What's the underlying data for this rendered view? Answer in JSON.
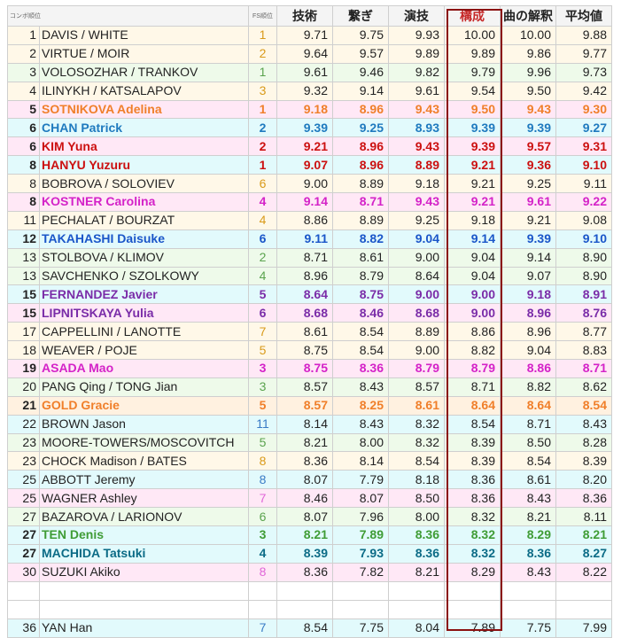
{
  "header": {
    "rank": "コンボ順位",
    "fs": "FS順位",
    "cols": [
      "技術",
      "繋ぎ",
      "演技",
      "構成",
      "曲の解釈",
      "平均値"
    ]
  },
  "colors": {
    "bg_yellow": "#fff8e8",
    "bg_green": "#eefaea",
    "bg_pink": "#ffe8f6",
    "bg_cyan": "#e2fafc",
    "bg_orange": "#fff1e0",
    "bg_violet": "#f4ecfb",
    "bg_white": "#ffffff",
    "t_orange": "#f07f2a",
    "t_blue": "#1f7abf",
    "t_red": "#cc1010",
    "t_magenta": "#d422c8",
    "t_navy": "#1a56c9",
    "t_purple": "#7a2ca8",
    "t_green": "#3f9c35",
    "t_teal": "#0b6b86",
    "t_pinkfs": "#e066d8",
    "t_goldfs": "#d99a1a",
    "t_greenfs": "#5aa34e",
    "t_bluefs": "#3a7cc6"
  },
  "rows": [
    {
      "rank": "1",
      "name": "DAVIS / WHITE",
      "fs": "1",
      "v": [
        "9.71",
        "9.75",
        "9.93",
        "10.00",
        "10.00",
        "9.88"
      ],
      "bg": "bg_yellow",
      "fsc": "t_goldfs"
    },
    {
      "rank": "2",
      "name": "VIRTUE / MOIR",
      "fs": "2",
      "v": [
        "9.64",
        "9.57",
        "9.89",
        "9.89",
        "9.86",
        "9.77"
      ],
      "bg": "bg_yellow",
      "fsc": "t_goldfs"
    },
    {
      "rank": "3",
      "name": "VOLOSOZHAR / TRANKOV",
      "fs": "1",
      "v": [
        "9.61",
        "9.46",
        "9.82",
        "9.79",
        "9.96",
        "9.73"
      ],
      "bg": "bg_green",
      "fsc": "t_greenfs"
    },
    {
      "rank": "4",
      "name": "ILINYKH / KATSALAPOV",
      "fs": "3",
      "v": [
        "9.32",
        "9.14",
        "9.61",
        "9.54",
        "9.50",
        "9.42"
      ],
      "bg": "bg_yellow",
      "fsc": "t_goldfs"
    },
    {
      "rank": "5",
      "name": "SOTNIKOVA Adelina",
      "fs": "1",
      "v": [
        "9.18",
        "8.96",
        "9.43",
        "9.50",
        "9.43",
        "9.30"
      ],
      "bg": "bg_pink",
      "tc": "t_orange",
      "bold": true
    },
    {
      "rank": "6",
      "name": "CHAN Patrick",
      "fs": "2",
      "v": [
        "9.39",
        "9.25",
        "8.93",
        "9.39",
        "9.39",
        "9.27"
      ],
      "bg": "bg_cyan",
      "tc": "t_blue",
      "bold": true
    },
    {
      "rank": "6",
      "name": "KIM Yuna",
      "fs": "2",
      "v": [
        "9.21",
        "8.96",
        "9.43",
        "9.39",
        "9.57",
        "9.31"
      ],
      "bg": "bg_pink",
      "tc": "t_red",
      "bold": true
    },
    {
      "rank": "8",
      "name": "HANYU Yuzuru",
      "fs": "1",
      "v": [
        "9.07",
        "8.96",
        "8.89",
        "9.21",
        "9.36",
        "9.10"
      ],
      "bg": "bg_cyan",
      "tc": "t_red",
      "bold": true
    },
    {
      "rank": "8",
      "name": "BOBROVA / SOLOVIEV",
      "fs": "6",
      "v": [
        "9.00",
        "8.89",
        "9.18",
        "9.21",
        "9.25",
        "9.11"
      ],
      "bg": "bg_yellow",
      "fsc": "t_goldfs"
    },
    {
      "rank": "8",
      "name": "KOSTNER Carolina",
      "fs": "4",
      "v": [
        "9.14",
        "8.71",
        "9.43",
        "9.21",
        "9.61",
        "9.22"
      ],
      "bg": "bg_pink",
      "tc": "t_magenta",
      "bold": true
    },
    {
      "rank": "11",
      "name": "PECHALAT / BOURZAT",
      "fs": "4",
      "v": [
        "8.86",
        "8.89",
        "9.25",
        "9.18",
        "9.21",
        "9.08"
      ],
      "bg": "bg_yellow",
      "fsc": "t_goldfs"
    },
    {
      "rank": "12",
      "name": "TAKAHASHI Daisuke",
      "fs": "6",
      "v": [
        "9.11",
        "8.82",
        "9.04",
        "9.14",
        "9.39",
        "9.10"
      ],
      "bg": "bg_cyan",
      "tc": "t_navy",
      "bold": true
    },
    {
      "rank": "13",
      "name": "STOLBOVA / KLIMOV",
      "fs": "2",
      "v": [
        "8.71",
        "8.61",
        "9.00",
        "9.04",
        "9.14",
        "8.90"
      ],
      "bg": "bg_green",
      "fsc": "t_greenfs"
    },
    {
      "rank": "13",
      "name": "SAVCHENKO / SZOLKOWY",
      "fs": "4",
      "v": [
        "8.96",
        "8.79",
        "8.64",
        "9.04",
        "9.07",
        "8.90"
      ],
      "bg": "bg_green",
      "fsc": "t_greenfs"
    },
    {
      "rank": "15",
      "name": "FERNANDEZ Javier",
      "fs": "5",
      "v": [
        "8.64",
        "8.75",
        "9.00",
        "9.00",
        "9.18",
        "8.91"
      ],
      "bg": "bg_cyan",
      "tc": "t_purple",
      "bold": true
    },
    {
      "rank": "15",
      "name": "LIPNITSKAYA Yulia",
      "fs": "6",
      "v": [
        "8.68",
        "8.46",
        "8.68",
        "9.00",
        "8.96",
        "8.76"
      ],
      "bg": "bg_pink",
      "tc": "t_purple",
      "bold": true
    },
    {
      "rank": "17",
      "name": "CAPPELLINI / LANOTTE",
      "fs": "7",
      "v": [
        "8.61",
        "8.54",
        "8.89",
        "8.86",
        "8.96",
        "8.77"
      ],
      "bg": "bg_yellow",
      "fsc": "t_goldfs"
    },
    {
      "rank": "18",
      "name": "WEAVER / POJE",
      "fs": "5",
      "v": [
        "8.75",
        "8.54",
        "9.00",
        "8.82",
        "9.04",
        "8.83"
      ],
      "bg": "bg_yellow",
      "fsc": "t_goldfs"
    },
    {
      "rank": "19",
      "name": "ASADA Mao",
      "fs": "3",
      "v": [
        "8.75",
        "8.36",
        "8.79",
        "8.79",
        "8.86",
        "8.71"
      ],
      "bg": "bg_pink",
      "tc": "t_magenta",
      "bold": true
    },
    {
      "rank": "20",
      "name": "PANG Qing / TONG Jian",
      "fs": "3",
      "v": [
        "8.57",
        "8.43",
        "8.57",
        "8.71",
        "8.82",
        "8.62"
      ],
      "bg": "bg_green",
      "fsc": "t_greenfs"
    },
    {
      "rank": "21",
      "name": "GOLD Gracie",
      "fs": "5",
      "v": [
        "8.57",
        "8.25",
        "8.61",
        "8.64",
        "8.64",
        "8.54"
      ],
      "bg": "bg_orange",
      "tc": "t_orange",
      "bold": true
    },
    {
      "rank": "22",
      "name": "BROWN Jason",
      "fs": "11",
      "v": [
        "8.14",
        "8.43",
        "8.32",
        "8.54",
        "8.71",
        "8.43"
      ],
      "bg": "bg_cyan",
      "fsc": "t_bluefs"
    },
    {
      "rank": "23",
      "name": "MOORE-TOWERS/MOSCOVITCH",
      "fs": "5",
      "v": [
        "8.21",
        "8.00",
        "8.32",
        "8.39",
        "8.50",
        "8.28"
      ],
      "bg": "bg_green",
      "fsc": "t_greenfs"
    },
    {
      "rank": "23",
      "name": "CHOCK Madison / BATES",
      "fs": "8",
      "v": [
        "8.36",
        "8.14",
        "8.54",
        "8.39",
        "8.54",
        "8.39"
      ],
      "bg": "bg_yellow",
      "fsc": "t_goldfs"
    },
    {
      "rank": "25",
      "name": "ABBOTT Jeremy",
      "fs": "8",
      "v": [
        "8.07",
        "7.79",
        "8.18",
        "8.36",
        "8.61",
        "8.20"
      ],
      "bg": "bg_cyan",
      "fsc": "t_bluefs"
    },
    {
      "rank": "25",
      "name": "WAGNER Ashley",
      "fs": "7",
      "v": [
        "8.46",
        "8.07",
        "8.50",
        "8.36",
        "8.43",
        "8.36"
      ],
      "bg": "bg_pink",
      "fsc": "t_pinkfs"
    },
    {
      "rank": "27",
      "name": "BAZAROVA / LARIONOV",
      "fs": "6",
      "v": [
        "8.07",
        "7.96",
        "8.00",
        "8.32",
        "8.21",
        "8.11"
      ],
      "bg": "bg_green",
      "fsc": "t_greenfs"
    },
    {
      "rank": "27",
      "name": "TEN Denis",
      "fs": "3",
      "v": [
        "8.21",
        "7.89",
        "8.36",
        "8.32",
        "8.29",
        "8.21"
      ],
      "bg": "bg_cyan",
      "tc": "t_green",
      "bold": true
    },
    {
      "rank": "27",
      "name": "MACHIDA Tatsuki",
      "fs": "4",
      "v": [
        "8.39",
        "7.93",
        "8.36",
        "8.32",
        "8.36",
        "8.27"
      ],
      "bg": "bg_cyan",
      "tc": "t_teal",
      "bold": true
    },
    {
      "rank": "30",
      "name": "SUZUKI Akiko",
      "fs": "8",
      "v": [
        "8.36",
        "7.82",
        "8.21",
        "8.29",
        "8.43",
        "8.22"
      ],
      "bg": "bg_pink",
      "fsc": "t_pinkfs"
    },
    {
      "empty": true
    },
    {
      "empty": true
    },
    {
      "rank": "36",
      "name": "YAN Han",
      "fs": "7",
      "v": [
        "8.54",
        "7.75",
        "8.04",
        "7.89",
        "7.75",
        "7.99"
      ],
      "bg": "bg_cyan",
      "fsc": "t_bluefs"
    }
  ]
}
